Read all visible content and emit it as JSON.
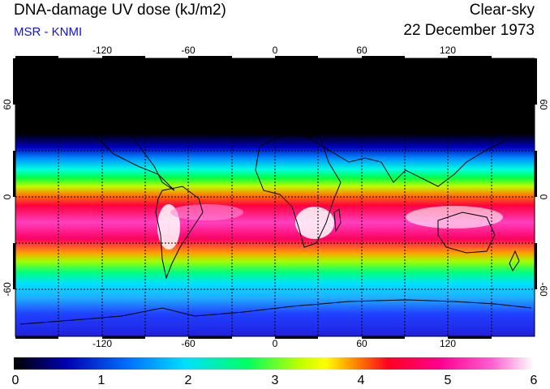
{
  "title": "DNA-damage UV dose (kJ/m2)",
  "subtitle": "MSR - KNMI",
  "condition": "Clear-sky",
  "date": "22 December 1973",
  "map": {
    "lon_ticks": [
      "-120",
      "-60",
      "0",
      "60",
      "120"
    ],
    "lat_ticks": [
      "60",
      "0",
      "-60"
    ],
    "lon_range": [
      -180,
      180
    ],
    "lat_range": [
      -90,
      90
    ],
    "gridlines": "dashed, every 30 degrees",
    "colors": {
      "land_outline": "#000000",
      "grid": "#000000",
      "night": "#000000"
    }
  },
  "colorbar": {
    "ticks": [
      "0",
      "1",
      "2",
      "3",
      "4",
      "5",
      "6"
    ],
    "range": [
      0,
      6
    ],
    "stops": [
      "#000000",
      "#0000c0",
      "#0080ff",
      "#00e0ff",
      "#00ff60",
      "#c0ff00",
      "#ffff00",
      "#ff8000",
      "#ff0040",
      "#ff00a0",
      "#ff60d0",
      "#ffffff"
    ]
  }
}
